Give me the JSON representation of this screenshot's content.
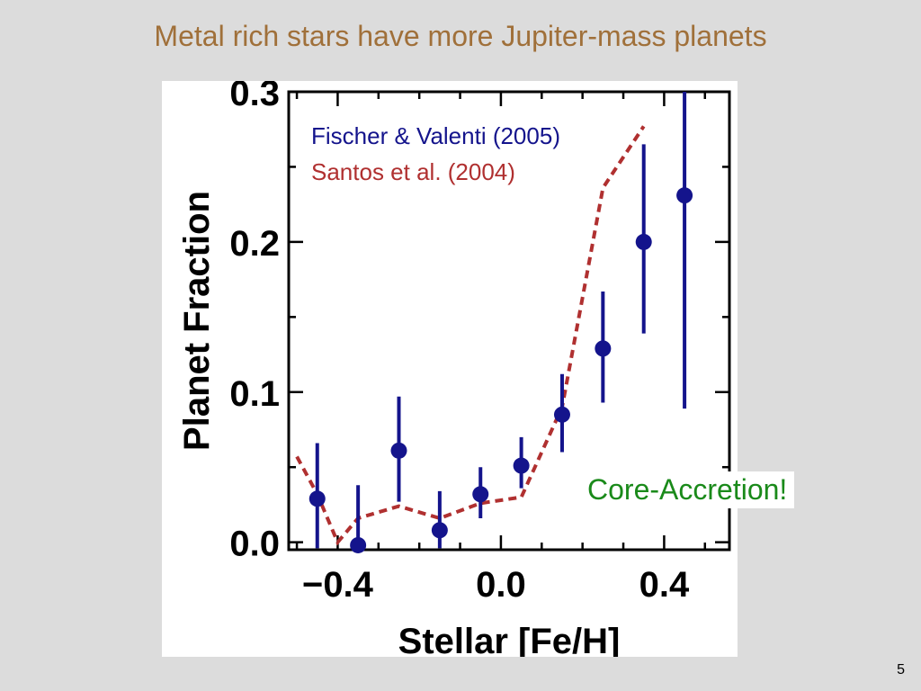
{
  "slide": {
    "title": "Metal rich stars have more Jupiter-mass planets",
    "callout": "Core-Accretion!",
    "page_number": "5"
  },
  "colors": {
    "title": "#a0703a",
    "fischer": "#14148c",
    "santos": "#b03030",
    "callout": "#1a8a1a"
  },
  "chart_data": {
    "type": "scatter",
    "xlabel": "Stellar [Fe/H]",
    "ylabel": "Planet Fraction",
    "xlim": [
      -0.52,
      0.56
    ],
    "ylim": [
      -0.005,
      0.3
    ],
    "xticks": [
      -0.4,
      0.0,
      0.4
    ],
    "xtick_labels": [
      "−0.4",
      "0.0",
      "0.4"
    ],
    "yticks": [
      0.0,
      0.1,
      0.2,
      0.3
    ],
    "ytick_labels": [
      "0.0",
      "0.1",
      "0.2",
      "0.3"
    ],
    "legend_position": "top-left",
    "grid": false,
    "series": [
      {
        "name": "Fischer & Valenti (2005)",
        "style": "points-with-errorbars",
        "x": [
          -0.45,
          -0.35,
          -0.25,
          -0.15,
          -0.05,
          0.05,
          0.15,
          0.25,
          0.35,
          0.45
        ],
        "y": [
          0.029,
          -0.002,
          0.061,
          0.008,
          0.032,
          0.051,
          0.085,
          0.129,
          0.2,
          0.231
        ],
        "err_low": [
          -0.004,
          -0.005,
          0.027,
          -0.004,
          0.016,
          0.036,
          0.06,
          0.093,
          0.139,
          0.089
        ],
        "err_high": [
          0.066,
          0.038,
          0.097,
          0.034,
          0.05,
          0.07,
          0.112,
          0.167,
          0.265,
          0.3
        ]
      },
      {
        "name": "Santos et al. (2004)",
        "style": "dashed-line",
        "x": [
          -0.5,
          -0.45,
          -0.4,
          -0.35,
          -0.25,
          -0.15,
          -0.05,
          0.05,
          0.15,
          0.25,
          0.35
        ],
        "y": [
          0.057,
          0.032,
          0.0,
          0.016,
          0.024,
          0.016,
          0.026,
          0.03,
          0.09,
          0.236,
          0.277
        ]
      }
    ]
  }
}
